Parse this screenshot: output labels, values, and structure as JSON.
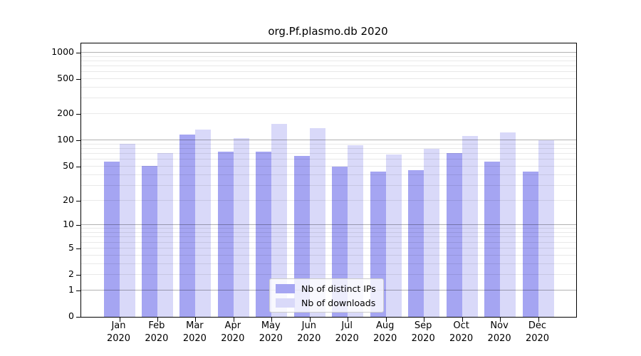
{
  "chart_data": {
    "type": "bar",
    "title": "org.Pf.plasmo.db 2020",
    "categories": [
      "Jan",
      "Feb",
      "Mar",
      "Apr",
      "May",
      "Jun",
      "Jul",
      "Aug",
      "Sep",
      "Oct",
      "Nov",
      "Dec"
    ],
    "year_label": "2020",
    "series": [
      {
        "name": "Nb of distinct IPs",
        "color": "#a5a5f2",
        "values": [
          57,
          51,
          116,
          74,
          74,
          66,
          50,
          44,
          45,
          71,
          57,
          44
        ]
      },
      {
        "name": "Nb of downloads",
        "color": "#d9d9f9",
        "values": [
          92,
          72,
          134,
          106,
          155,
          138,
          88,
          69,
          80,
          112,
          123,
          100
        ]
      }
    ],
    "yscale": "log1p",
    "yticks": [
      0,
      1,
      2,
      5,
      10,
      20,
      50,
      100,
      200,
      500,
      1000
    ],
    "ylim": [
      0,
      1271
    ],
    "grid": true,
    "grid_over_bars": true,
    "legend_position": "lower-center"
  },
  "colors": {
    "bar_ips": "#a5a5f2",
    "bar_downloads": "#d9d9f9",
    "grid_major": "#b3b3b3",
    "grid_minor": "#e9e9e9",
    "axis": "#000000",
    "text": "#000000",
    "legend_border": "#cccccc",
    "legend_bg": "#ffffff"
  }
}
